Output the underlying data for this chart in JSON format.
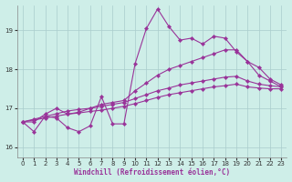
{
  "xlabel": "Windchill (Refroidissement éolien,°C)",
  "background_color": "#ceeee8",
  "grid_color": "#aacccc",
  "line_color": "#993399",
  "xlim": [
    -0.5,
    23.5
  ],
  "ylim": [
    15.75,
    19.65
  ],
  "yticks": [
    16,
    17,
    18,
    19
  ],
  "xticks": [
    0,
    1,
    2,
    3,
    4,
    5,
    6,
    7,
    8,
    9,
    10,
    11,
    12,
    13,
    14,
    15,
    16,
    17,
    18,
    19,
    20,
    21,
    22,
    23
  ],
  "line1_y": [
    16.65,
    16.4,
    16.8,
    16.75,
    16.5,
    16.4,
    16.55,
    17.3,
    16.6,
    16.6,
    18.15,
    19.05,
    19.55,
    19.1,
    18.75,
    18.8,
    18.65,
    18.85,
    18.8,
    18.45,
    18.2,
    18.05,
    17.75,
    17.6
  ],
  "line2_y": [
    16.65,
    16.65,
    16.85,
    17.0,
    16.85,
    16.9,
    17.0,
    17.1,
    17.15,
    17.2,
    17.45,
    17.65,
    17.85,
    18.0,
    18.1,
    18.2,
    18.3,
    18.4,
    18.5,
    18.5,
    18.2,
    17.85,
    17.7,
    17.55
  ],
  "line3_y": [
    16.65,
    16.72,
    16.79,
    16.86,
    16.93,
    16.97,
    17.0,
    17.05,
    17.1,
    17.15,
    17.25,
    17.35,
    17.45,
    17.52,
    17.6,
    17.65,
    17.7,
    17.75,
    17.8,
    17.82,
    17.7,
    17.62,
    17.58,
    17.55
  ],
  "line4_y": [
    16.65,
    16.7,
    16.75,
    16.8,
    16.85,
    16.88,
    16.92,
    16.95,
    17.0,
    17.05,
    17.12,
    17.2,
    17.28,
    17.35,
    17.4,
    17.45,
    17.5,
    17.55,
    17.58,
    17.62,
    17.55,
    17.52,
    17.5,
    17.5
  ]
}
